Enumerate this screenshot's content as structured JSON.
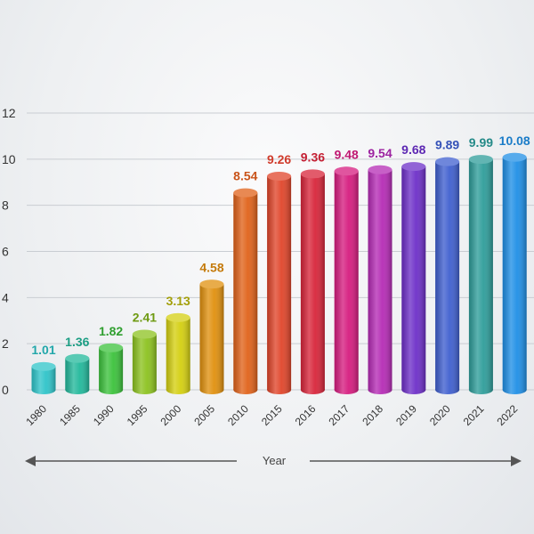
{
  "chart_data": {
    "type": "bar",
    "title": "",
    "xlabel": "Year",
    "ylabel": "",
    "ylim": [
      0,
      12
    ],
    "y_ticks": [
      "0",
      "2",
      "4",
      "6",
      "8",
      "10",
      "12"
    ],
    "grid": true,
    "categories": [
      "1980",
      "1985",
      "1990",
      "1995",
      "2000",
      "2005",
      "2010",
      "2015",
      "2016",
      "2017",
      "2018",
      "2019",
      "2020",
      "2021",
      "2022"
    ],
    "values": [
      1.01,
      1.36,
      1.82,
      2.41,
      3.13,
      4.58,
      8.54,
      9.26,
      9.36,
      9.48,
      9.54,
      9.68,
      9.89,
      9.99,
      10.08
    ],
    "value_labels": [
      "1.01",
      "1.36",
      "1.82",
      "2.41",
      "3.13",
      "4.58",
      "8.54",
      "9.26",
      "9.36",
      "9.48",
      "9.54",
      "9.68",
      "9.89",
      "9.99",
      "10.08"
    ],
    "colors": [
      "#2ec4c9",
      "#22b89b",
      "#3cc23c",
      "#8cc21f",
      "#d4cf10",
      "#e0900e",
      "#e0621a",
      "#e0452a",
      "#d8253a",
      "#d61c7f",
      "#b52bb5",
      "#6d2fc8",
      "#3f5fcf",
      "#2e9d9a",
      "#1f8fe6"
    ],
    "label_colors": [
      "#22a7aa",
      "#1c9e84",
      "#2f9f2f",
      "#6e9a12",
      "#a39f08",
      "#c47a0a",
      "#c9541a",
      "#d03c2c",
      "#c41f33",
      "#c01872",
      "#9c22a0",
      "#5d28b3",
      "#3552b8",
      "#248a88",
      "#1a7cc8"
    ]
  }
}
